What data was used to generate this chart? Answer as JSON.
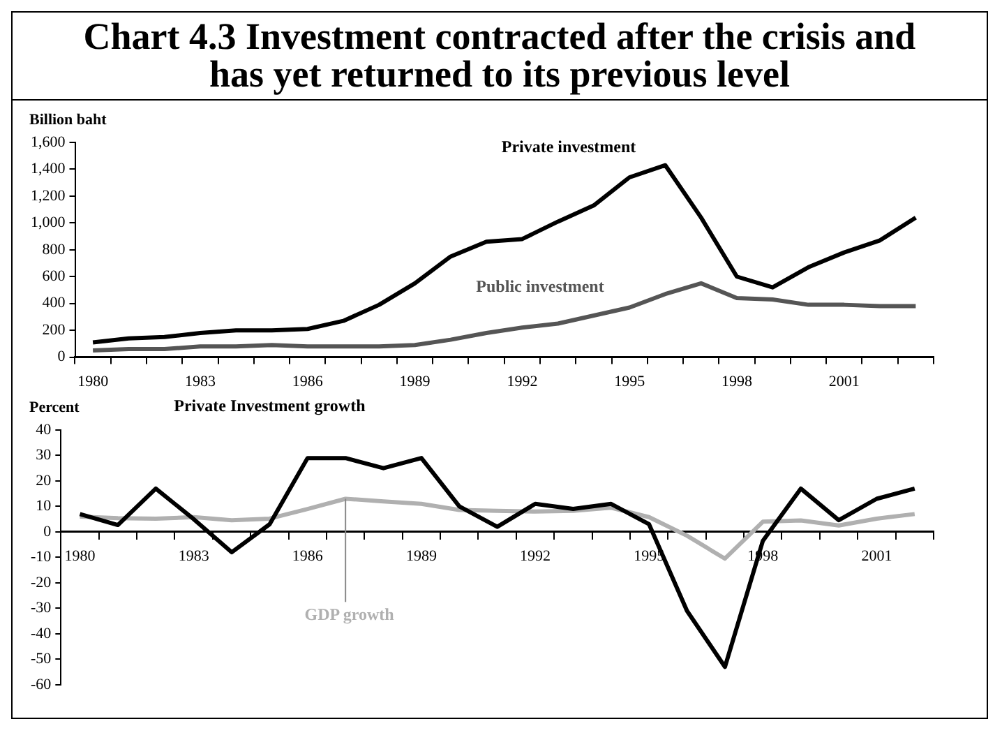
{
  "chart_data": [
    {
      "type": "line",
      "title": "Chart 4.3  Investment contracted after the crisis and has yet returned to its previous level",
      "ylabel": "Billion baht",
      "categories": [
        "1980",
        null,
        null,
        "1983",
        null,
        null,
        "1986",
        null,
        null,
        "1989",
        null,
        null,
        "1992",
        null,
        null,
        "1995",
        null,
        null,
        "1998",
        null,
        null,
        "2001",
        null,
        null
      ],
      "series": [
        {
          "name": "Private investment",
          "color": "#000000",
          "values": [
            110,
            140,
            150,
            180,
            200,
            200,
            210,
            270,
            390,
            550,
            750,
            860,
            880,
            1010,
            1130,
            1340,
            1430,
            1040,
            600,
            520,
            670,
            780,
            870,
            1040
          ]
        },
        {
          "name": "Public investment",
          "color": "#555555",
          "values": [
            50,
            60,
            60,
            80,
            80,
            90,
            80,
            80,
            80,
            90,
            130,
            180,
            220,
            250,
            310,
            370,
            470,
            550,
            440,
            430,
            390,
            390,
            380,
            380
          ]
        }
      ],
      "ylim": [
        0,
        1600
      ],
      "yticks": [
        0,
        200,
        400,
        600,
        800,
        {
          "value": 1000,
          "label": "1,000"
        },
        {
          "value": 1200,
          "label": "1,200"
        },
        {
          "value": 1400,
          "label": "1,400"
        },
        {
          "value": 1600,
          "label": "1,600"
        }
      ],
      "grid": false
    },
    {
      "type": "line",
      "ylabel": "Percent",
      "categories": [
        "1980",
        null,
        null,
        "1983",
        null,
        null,
        "1986",
        null,
        null,
        "1989",
        null,
        null,
        "1992",
        null,
        null,
        "1995",
        null,
        null,
        "1998",
        null,
        null,
        "2001",
        null
      ],
      "series": [
        {
          "name": "Private Investment growth",
          "color": "#000000",
          "values": [
            7,
            2.7,
            17,
            5,
            -8,
            3,
            29,
            29,
            25,
            29,
            10,
            2,
            11,
            9,
            11,
            3,
            -31,
            -53,
            -3.5,
            17,
            4.6,
            13,
            17
          ]
        },
        {
          "name": "GDP growth",
          "color": "#b0b0b0",
          "values": [
            6,
            5.4,
            5.2,
            5.8,
            4.6,
            5.2,
            9,
            13,
            12,
            11,
            8.6,
            8.3,
            8,
            8.3,
            9.5,
            5.8,
            -1.5,
            -10.5,
            4,
            4.5,
            2.5,
            5.2,
            7
          ]
        }
      ],
      "ylim": [
        -60,
        40
      ],
      "yticks": [
        -60,
        -50,
        -40,
        -30,
        -20,
        -10,
        0,
        10,
        20,
        30,
        40
      ],
      "grid": false
    }
  ]
}
